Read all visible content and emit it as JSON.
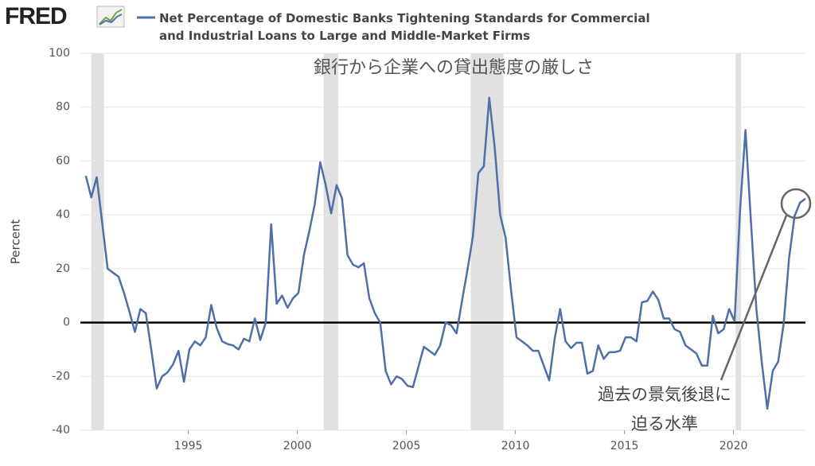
{
  "chart_data": {
    "type": "line",
    "brand": "FRED",
    "y_label": "Percent",
    "annotation_top": "銀行から企業への貸出態度の厳しさ",
    "annotation_callout": [
      "過去の景気後退に",
      "迫る水準"
    ],
    "xlim": [
      1990.05,
      2023.3
    ],
    "xticks": [
      1995,
      2000,
      2005,
      2010,
      2015,
      2020
    ],
    "ylim": [
      -40,
      100
    ],
    "yticks": [
      -40,
      -20,
      0,
      20,
      40,
      60,
      80,
      100
    ],
    "grid": true,
    "reference_line": 0,
    "recessions": [
      [
        1990.55,
        1991.13
      ],
      [
        2001.2,
        2001.87
      ],
      [
        2007.95,
        2009.45
      ],
      [
        2020.1,
        2020.35
      ]
    ],
    "series": [
      {
        "name": "Net Percentage of Domestic Banks Tightening Standards for Commercial and Industrial Loans to Large and Middle-Market Firms",
        "color": "#4e6fa8",
        "x": [
          1990.3,
          1990.55,
          1990.8,
          1991.05,
          1991.3,
          1991.55,
          1991.8,
          1992.05,
          1992.3,
          1992.55,
          1992.8,
          1993.05,
          1993.3,
          1993.55,
          1993.8,
          1994.05,
          1994.3,
          1994.55,
          1994.8,
          1995.05,
          1995.3,
          1995.55,
          1995.8,
          1996.05,
          1996.3,
          1996.55,
          1996.8,
          1997.05,
          1997.3,
          1997.55,
          1997.8,
          1998.05,
          1998.3,
          1998.55,
          1998.8,
          1999.05,
          1999.3,
          1999.55,
          1999.8,
          2000.05,
          2000.3,
          2000.55,
          2000.8,
          2001.05,
          2001.3,
          2001.55,
          2001.8,
          2002.05,
          2002.3,
          2002.55,
          2002.8,
          2003.05,
          2003.3,
          2003.55,
          2003.8,
          2004.05,
          2004.3,
          2004.55,
          2004.8,
          2005.05,
          2005.3,
          2005.55,
          2005.8,
          2006.05,
          2006.3,
          2006.55,
          2006.8,
          2007.05,
          2007.3,
          2007.55,
          2007.8,
          2008.05,
          2008.3,
          2008.55,
          2008.8,
          2009.05,
          2009.3,
          2009.55,
          2009.8,
          2010.05,
          2010.3,
          2010.55,
          2010.8,
          2011.05,
          2011.3,
          2011.55,
          2011.8,
          2012.05,
          2012.3,
          2012.55,
          2012.8,
          2013.05,
          2013.3,
          2013.55,
          2013.8,
          2014.05,
          2014.3,
          2014.55,
          2014.8,
          2015.05,
          2015.3,
          2015.55,
          2015.8,
          2016.05,
          2016.3,
          2016.55,
          2016.8,
          2017.05,
          2017.3,
          2017.55,
          2017.8,
          2018.05,
          2018.3,
          2018.55,
          2018.8,
          2019.05,
          2019.3,
          2019.55,
          2019.8,
          2020.05,
          2020.3,
          2020.55,
          2020.8,
          2021.05,
          2021.3,
          2021.55,
          2021.8,
          2022.05,
          2022.3,
          2022.55,
          2022.8,
          2023.05,
          2023.3
        ],
        "values": [
          54.5,
          46.5,
          54,
          37,
          20,
          18.5,
          17,
          11,
          4,
          -3.5,
          5,
          3.5,
          -10,
          -24.5,
          -20,
          -18.5,
          -15.5,
          -10.5,
          -22,
          -10,
          -7,
          -8.5,
          -5.5,
          6.5,
          -2,
          -7,
          -8,
          -8.5,
          -10,
          -6,
          -7,
          1.5,
          -6.5,
          0,
          36.5,
          7,
          10,
          5.5,
          9,
          11,
          25,
          34,
          44,
          59.5,
          51,
          40.5,
          51,
          46,
          25,
          21.5,
          20.5,
          22,
          9,
          3.5,
          0,
          -18,
          -23,
          -20,
          -21,
          -23.5,
          -24,
          -16.5,
          -9,
          -10.5,
          -12,
          -8.5,
          0,
          -1,
          -4,
          8,
          19.5,
          32,
          55.5,
          58,
          83.5,
          65,
          40,
          31.5,
          12,
          -5.5,
          -7,
          -8.5,
          -10.5,
          -10.5,
          -16,
          -21.5,
          -6,
          5,
          -7,
          -9.5,
          -7.5,
          -7.5,
          -19,
          -18,
          -8.5,
          -13.5,
          -11,
          -11,
          -10.5,
          -5.5,
          -5.5,
          -7,
          7.5,
          8,
          11.5,
          8.5,
          1.5,
          1.5,
          -2.5,
          -3.5,
          -8.5,
          -10,
          -11.5,
          -16,
          -16,
          2.5,
          -4,
          -2.5,
          5,
          0.5,
          41.5,
          71.5,
          37.5,
          5,
          -15,
          -32,
          -18,
          -14.5,
          -0.5,
          24,
          39.5,
          44.5,
          46
        ]
      }
    ]
  }
}
